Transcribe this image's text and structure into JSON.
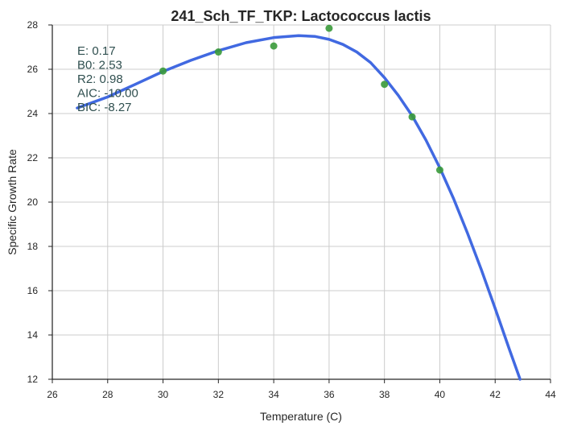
{
  "chart_data": {
    "type": "scatter",
    "title": "241_Sch_TF_TKP: Lactococcus lactis",
    "xlabel": "Temperature (C)",
    "ylabel": "Specific Growth Rate",
    "xlim": [
      26,
      44
    ],
    "ylim": [
      12,
      28
    ],
    "xticks": [
      26,
      28,
      30,
      32,
      34,
      36,
      38,
      40,
      42,
      44
    ],
    "yticks": [
      12,
      14,
      16,
      18,
      20,
      22,
      24,
      26,
      28
    ],
    "grid": true,
    "points": {
      "color": "#3a9a3a",
      "x": [
        30,
        32,
        34,
        36,
        38,
        39,
        40
      ],
      "y": [
        25.92,
        26.78,
        27.05,
        27.85,
        25.32,
        23.85,
        21.45
      ]
    },
    "fit_curve": {
      "color": "#4169e1",
      "x": [
        26.9,
        28,
        29,
        30,
        31,
        32,
        33,
        34,
        34.9,
        35.5,
        36,
        36.5,
        37,
        37.5,
        38,
        38.5,
        39,
        39.5,
        40,
        40.5,
        41,
        41.5,
        42,
        42.5,
        42.9
      ],
      "y": [
        24.25,
        24.75,
        25.32,
        25.9,
        26.4,
        26.84,
        27.2,
        27.43,
        27.52,
        27.48,
        27.35,
        27.12,
        26.78,
        26.3,
        25.62,
        24.82,
        23.9,
        22.8,
        21.55,
        20.15,
        18.6,
        16.95,
        15.2,
        13.4,
        12.0
      ]
    },
    "annotations": [
      "E:  0.17",
      "B0:  2.53",
      "R2:  0.98",
      "AIC: -10.00",
      "BIC: -8.27"
    ]
  }
}
